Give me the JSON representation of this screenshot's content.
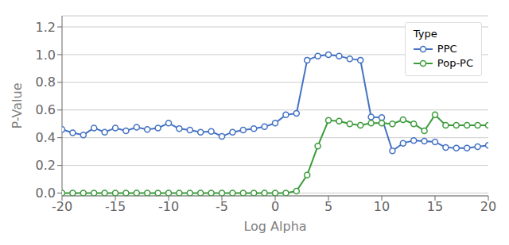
{
  "chart_data": {
    "type": "line",
    "xlabel": "Log Alpha",
    "ylabel": "P-Value",
    "legend_title": "Type",
    "x": [
      -20,
      -19,
      -18,
      -17,
      -16,
      -15,
      -14,
      -13,
      -12,
      -11,
      -10,
      -9,
      -8,
      -7,
      -6,
      -5,
      -4,
      -3,
      -2,
      -1,
      0,
      1,
      2,
      3,
      4,
      5,
      6,
      7,
      8,
      9,
      10,
      11,
      12,
      13,
      14,
      15,
      16,
      17,
      18,
      19,
      20
    ],
    "series": [
      {
        "name": "PPC",
        "color": "#4472C4",
        "marker": "circle",
        "values": [
          0.46,
          0.435,
          0.42,
          0.47,
          0.44,
          0.47,
          0.45,
          0.475,
          0.46,
          0.47,
          0.505,
          0.465,
          0.455,
          0.44,
          0.445,
          0.41,
          0.44,
          0.455,
          0.465,
          0.48,
          0.505,
          0.565,
          0.575,
          0.96,
          0.99,
          1.0,
          0.99,
          0.97,
          0.96,
          0.55,
          0.545,
          0.305,
          0.36,
          0.38,
          0.375,
          0.37,
          0.33,
          0.325,
          0.325,
          0.335,
          0.345
        ]
      },
      {
        "name": "Pop-PC",
        "color": "#3c9c3c",
        "marker": "circle",
        "values": [
          0.0,
          0.0,
          0.0,
          0.0,
          0.0,
          0.0,
          0.0,
          0.0,
          0.0,
          0.0,
          0.0,
          0.0,
          0.0,
          0.0,
          0.0,
          0.0,
          0.0,
          0.0,
          0.0,
          0.0,
          0.0,
          0.0,
          0.015,
          0.13,
          0.34,
          0.525,
          0.52,
          0.5,
          0.49,
          0.505,
          0.505,
          0.5,
          0.53,
          0.5,
          0.45,
          0.565,
          0.49,
          0.49,
          0.49,
          0.49,
          0.49
        ]
      }
    ],
    "xlim": [
      -20,
      20
    ],
    "ylim": [
      -0.02,
      1.28
    ],
    "xticks": [
      -20,
      -15,
      -10,
      -5,
      0,
      5,
      10,
      15,
      20
    ],
    "yticks": [
      {
        "value": 0.0,
        "label": "0.0"
      },
      0.2,
      0.4,
      0.6,
      0.8,
      {
        "value": 1.0,
        "label": "1.0"
      },
      1.2
    ],
    "grid": true,
    "legend": "upper right"
  }
}
